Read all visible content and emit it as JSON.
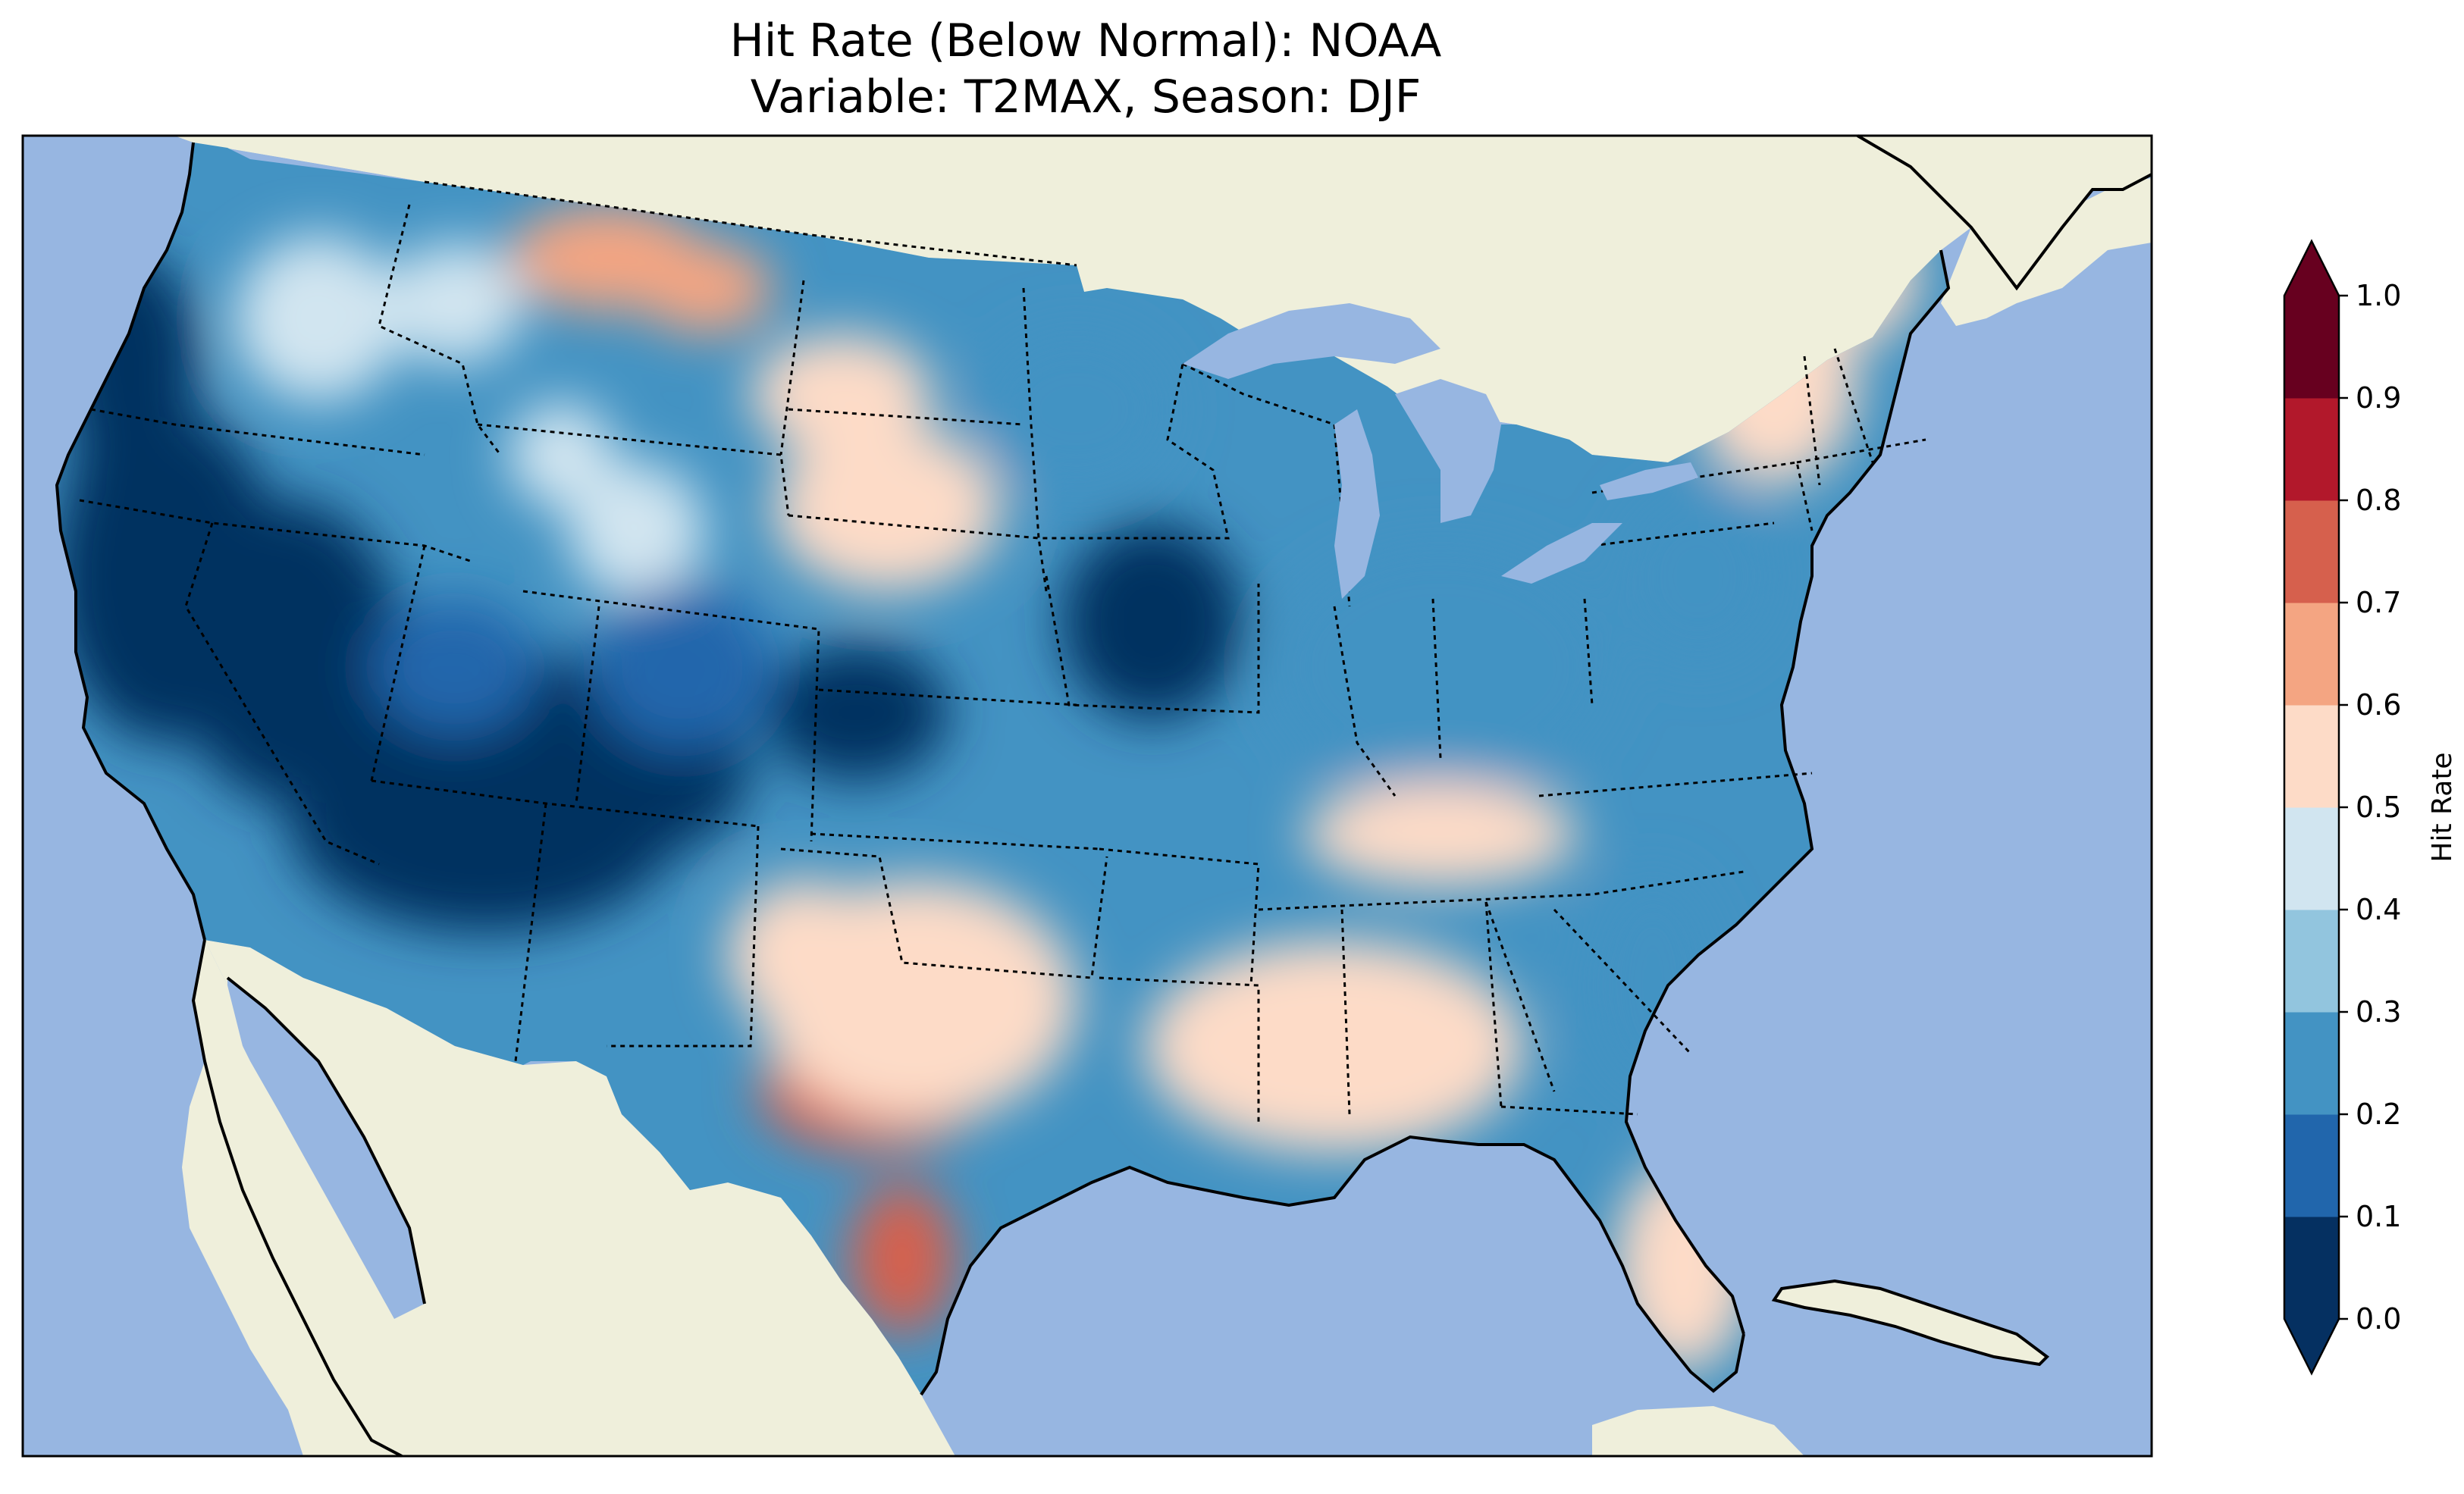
{
  "title": {
    "line1": "Hit Rate (Below Normal): NOAA",
    "line2": "Variable: T2MAX, Season: DJF"
  },
  "colors": {
    "ocean": "#97b6e1",
    "land": "#efefdb",
    "coastline": "#000000",
    "borders": "#000000"
  },
  "colorbar": {
    "label": "Hit Rate",
    "ticks": [
      "0.0",
      "0.1",
      "0.2",
      "0.3",
      "0.4",
      "0.5",
      "0.6",
      "0.7",
      "0.8",
      "0.9",
      "1.0"
    ],
    "bins": [
      {
        "from": 0.0,
        "to": 0.1,
        "color": "#053061"
      },
      {
        "from": 0.1,
        "to": 0.2,
        "color": "#2166ac"
      },
      {
        "from": 0.2,
        "to": 0.3,
        "color": "#4393c3"
      },
      {
        "from": 0.3,
        "to": 0.4,
        "color": "#92c5de"
      },
      {
        "from": 0.4,
        "to": 0.5,
        "color": "#d1e5f0"
      },
      {
        "from": 0.5,
        "to": 0.6,
        "color": "#fddbc7"
      },
      {
        "from": 0.6,
        "to": 0.7,
        "color": "#f4a582"
      },
      {
        "from": 0.7,
        "to": 0.8,
        "color": "#d6604d"
      },
      {
        "from": 0.8,
        "to": 0.9,
        "color": "#b2182b"
      },
      {
        "from": 0.9,
        "to": 1.0,
        "color": "#67001f"
      }
    ],
    "under_color": "#053061",
    "over_color": "#67001f"
  },
  "chart_data": {
    "type": "heatmap",
    "title": "Hit Rate (Below Normal): NOAA / Variable: T2MAX, Season: DJF",
    "region": "Contiguous United States",
    "variable": "T2MAX",
    "season": "DJF",
    "model": "NOAA",
    "colorbar_label": "Hit Rate",
    "range": [
      0.0,
      1.0
    ],
    "levels": [
      0.0,
      0.1,
      0.2,
      0.3,
      0.4,
      0.5,
      0.6,
      0.7,
      0.8,
      0.9,
      1.0
    ],
    "extend": "both",
    "regional_values": [
      {
        "region": "Pacific Northwest coast",
        "value": 0.05
      },
      {
        "region": "Oregon / Northern California",
        "value": 0.05
      },
      {
        "region": "Nevada",
        "value": 0.05
      },
      {
        "region": "Utah / Arizona",
        "value": 0.05
      },
      {
        "region": "Idaho / Western Montana",
        "value": 0.45
      },
      {
        "region": "Northern Montana",
        "value": 0.65
      },
      {
        "region": "Wyoming",
        "value": 0.45
      },
      {
        "region": "Colorado",
        "value": 0.15
      },
      {
        "region": "Nebraska / Kansas border",
        "value": 0.05
      },
      {
        "region": "South Dakota",
        "value": 0.55
      },
      {
        "region": "Minnesota / North Dakota",
        "value": 0.25
      },
      {
        "region": "Iowa",
        "value": 0.05
      },
      {
        "region": "Ohio Valley / Midwest",
        "value": 0.25
      },
      {
        "region": "Northeast / New England",
        "value": 0.55
      },
      {
        "region": "Mid-Atlantic",
        "value": 0.25
      },
      {
        "region": "West Texas",
        "value": 0.75
      },
      {
        "region": "Texas / Oklahoma",
        "value": 0.55
      },
      {
        "region": "Gulf Coast / Southeast",
        "value": 0.55
      },
      {
        "region": "Georgia / Carolinas coast",
        "value": 0.25
      },
      {
        "region": "Florida peninsula",
        "value": 0.55
      }
    ]
  }
}
